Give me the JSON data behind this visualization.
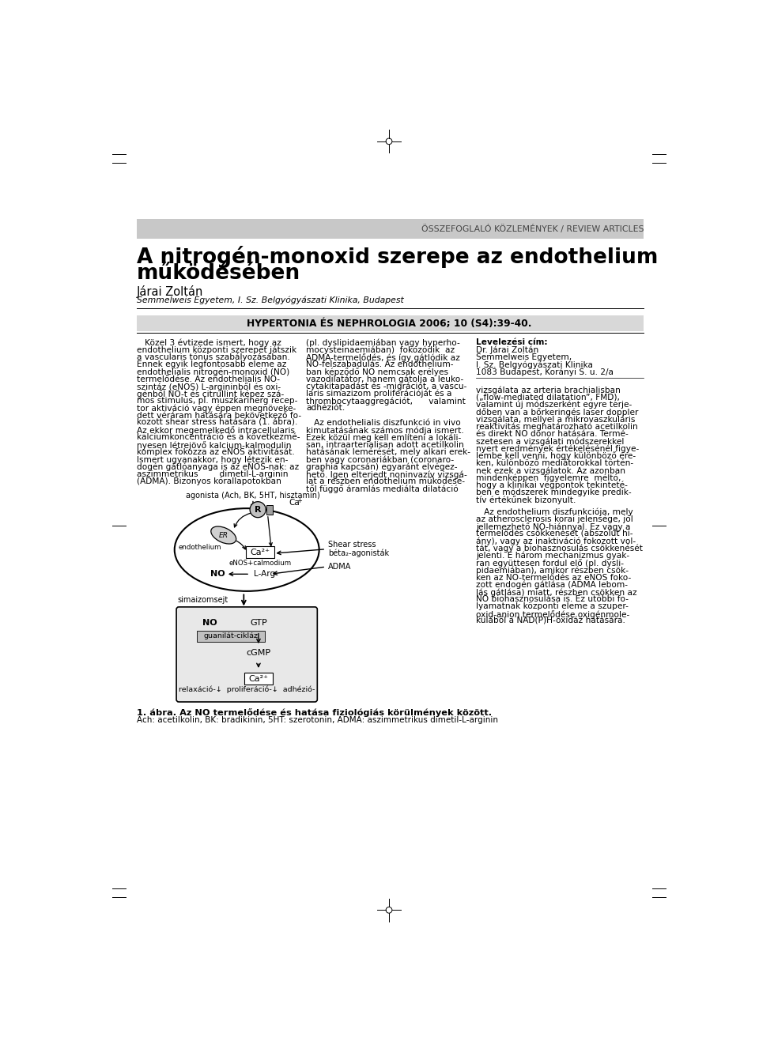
{
  "page_bg": "#ffffff",
  "header_bar_color": "#c8c8c8",
  "header_text": "ÖSSZEFOGLALÓ KÖZLEMÉNYEK / REVIEW ARTICLES",
  "title_line1": "A nitrogén-monoxid szerepe az endothelium",
  "title_line2": "működésében",
  "author_name": "Járai Zoltán",
  "author_affil": "Semmelweis Egyetem, I. Sz. Belgyógyászati Klinika, Budapest",
  "journal_header": "HYPERTONIA ÉS NEPHROLOGIA 2006; 10 (S4):39-40.",
  "col1_lines": [
    "   Közel 3 évtizede ismert, hogy az",
    "endothelium központi szerepet játszik",
    "a vascularis tónus szabályozásában.",
    "Ennek egyik legfontosabb eleme az",
    "endothelialis nitrogén-monoxid (NO)",
    "termelődése. Az endothelialis NO-",
    "szintáz (eNOS) L-argininből és oxi-",
    "génből NO-t és citrullint képez szá-",
    "mos stimulus, pl. muszkarinerg recep-",
    "tor aktiváció vagy éppen megnöveke-",
    "dett véráram hatására bekövetkező fo-",
    "kozott shear stress hatására (1. ábra).",
    "Az ekkor megemelkedő intracellularis",
    "kalciumkoncentráció és a következmé-",
    "nyesen létrejövő kalcium-kalmodulin",
    "komplex fokozza az eNOS aktivitását.",
    "Ismert ugyanakkor, hogy létezik en-",
    "dogén gátlóanyaga is az eNOS-nak: az",
    "aszimmetrikus        dimetil-L-arginin",
    "(ADMA). Bizonyos kórallapotokban"
  ],
  "col2_lines": [
    "(pl. dyslipidaemiában vagy hyperho-",
    "mocysteinaemiában)  fokozódik  az",
    "ADMA-termelődés, és így gátlódik az",
    "NO-felszabadulás. Az endothelium-",
    "ban képződő NO nemcsak erélyes",
    "vazodilatátor, hanem gátolja a leuko-",
    "cytakitapadást és -migrációt, a vascu-",
    "laris simazizom proliferációját és a",
    "thrombocytaaggregációt,      valamint",
    "adhéziót.",
    "",
    "   Az endothelialis diszfunkció in vivo",
    "kimutatásának számos módja ismert.",
    "Ezek közül meg kell említeni a lokáli-",
    "san, intraarterialisan adott acetilkolin",
    "hatásának lemérését, mely alkari erek-",
    "ben vagy coronariákban (coronaro-",
    "graphia kapcsán) egyaránt elvégez-",
    "hető. Igen elterjedt noninvazív vizsgá-",
    "lat a részben endothelium működésé-",
    "től függő áramlás mediálta dilatáció"
  ],
  "col3_header": "Levelezési cím:",
  "col3_addr": [
    "Dr. Járai Zoltán",
    "Semmelweis Egyetem,",
    "I. Sz. Belgyógyászati Klinika",
    "1083 Budapest, Korányi S. u. 2/a"
  ],
  "col3_para1": [
    "vizsgálata az arteria brachialisban",
    "(„flow-mediated dilatation”, FMD),",
    "valamint új módszerként egyre terje-",
    "dőben van a bőrkeringés laser doppler",
    "vizsgálata, mellyel a mikrovaszkuláris",
    "reaktivitás meghatározható acetilkolin",
    "és direkt NO donor hatására. Termé-",
    "szetesen a vizsgálati módszerekkel",
    "nyert eredmények értékelésénél figye-",
    "lembe kell venni, hogy különböző ere-",
    "ken, különböző mediátorokkal történ-",
    "nek ezek a vizsgálatok. Az azonban",
    "mindenképpen  figyelemre  méltó,",
    "hogy a klinikai végpontok tekinteté-",
    "ben e módszerek mindegyike predik-",
    "tív értékűnek bizonyult."
  ],
  "col3_para2": [
    "   Az endothelium diszfunkciója, mely",
    "az atherosclerosis korai jelensége, jól",
    "jellemezhető NO-hiánnyal. Ez vagy a",
    "termelődés csökkenését (abszolút hi-",
    "ány), vagy az inaktiváció fokozott vol-",
    "tát, vagy a biohasznosulás csökkenését",
    "jelenti. E három mechanizmus gyak-",
    "ran együttesen fordul elő (pl. dysli-",
    "pidaemiában), amikor részben csök-",
    "ken az NO-termelődés az eNOS foko-",
    "zott endogén gátlása (ADMA lebom-",
    "lás gátlása) miatt, részben csökken az",
    "NO biohasznosulása is. Ez utóbbi fo-",
    "lyamatnak központi eleme a szuper-",
    "oxid-anion termelődése oxigénmole-",
    "kulából a NAD(P)H-oxidáz hatására."
  ],
  "fig_caption_bold": "1. ábra. Az NO termelődése és hatása fiziológiás körülmények között.",
  "fig_caption_normal": "Ach: acetilkolin, BK: bradikinin, 5HT: szerotonin, ADMA: aszimmetrikus dimetil-L-arginin"
}
